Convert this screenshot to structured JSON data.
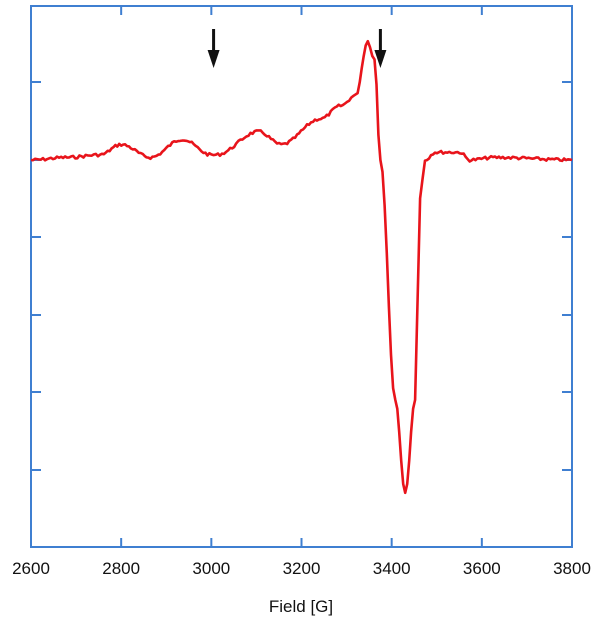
{
  "chart_data": {
    "type": "line",
    "title": "",
    "xlabel": "Field [G]",
    "ylabel": "",
    "xlim": [
      2600,
      3800
    ],
    "ylim": [
      -1.0,
      0.35
    ],
    "x_ticks": [
      2600,
      2800,
      3000,
      3200,
      3400,
      3600,
      3800
    ],
    "x_tick_labels": [
      "2600",
      "2800",
      "3000",
      "3200",
      "3400",
      "3600",
      "3800"
    ],
    "y_ticks_unlabeled": true,
    "grid": false,
    "legend": null,
    "annotations": [
      {
        "type": "arrow-down",
        "x": 3005,
        "label": ""
      },
      {
        "type": "arrow-down",
        "x": 3375,
        "label": ""
      }
    ],
    "series": [
      {
        "name": "EPR spectrum",
        "color": "#e8141b",
        "x": [
          2600,
          2680,
          2753,
          2800,
          2865,
          2935,
          3000,
          3010,
          3105,
          3155,
          3243,
          3287,
          3320,
          3347,
          3362,
          3375,
          3408,
          3430,
          3452,
          3463,
          3474,
          3496,
          3551,
          3573,
          3629,
          3800
        ],
        "y": [
          0.0,
          0.01,
          0.02,
          0.06,
          0.01,
          0.08,
          0.02,
          0.02,
          0.11,
          0.06,
          0.16,
          0.21,
          0.25,
          0.46,
          0.39,
          0.0,
          -0.93,
          -1.29,
          -0.93,
          -0.15,
          0.0,
          0.03,
          0.03,
          0.0,
          0.01,
          0.0
        ]
      }
    ]
  },
  "axis_color": "#3f7fd1",
  "arrow_color": "#111111"
}
